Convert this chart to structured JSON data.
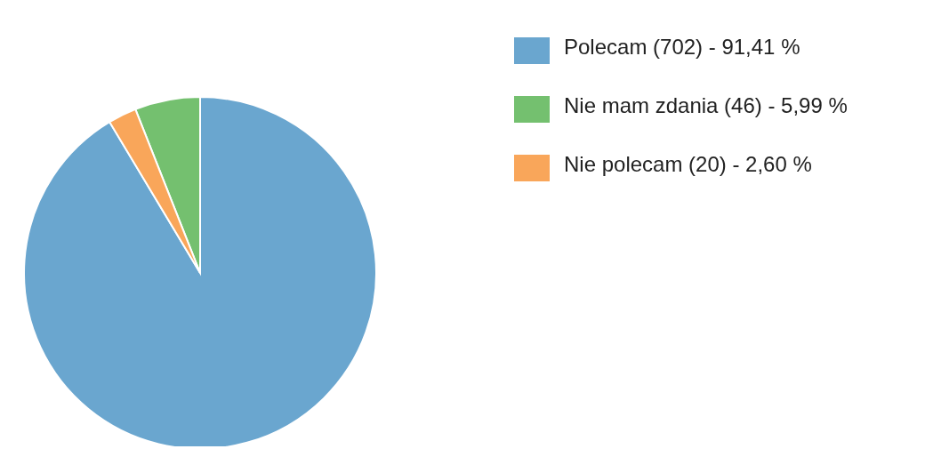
{
  "chart_data": {
    "type": "pie",
    "categories": [
      "Polecam (702) - 91,41 %",
      "Nie mam zdania (46) - 5,99 %",
      "Nie polecam (20) - 2,60 %"
    ],
    "values": [
      702,
      46,
      20
    ],
    "colors": [
      "#6aa6cf",
      "#74c06f",
      "#f9a65a"
    ],
    "legend": "top right"
  }
}
